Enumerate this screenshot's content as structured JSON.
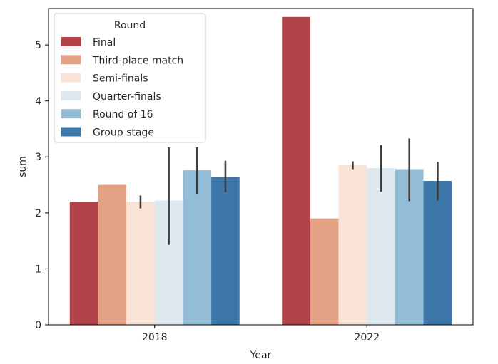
{
  "chart_data": {
    "type": "bar",
    "title": "",
    "xlabel": "Year",
    "ylabel": "sum",
    "categories": [
      "2018",
      "2022"
    ],
    "ylim": [
      0,
      5.65
    ],
    "yticks": [
      0,
      1,
      2,
      3,
      4,
      5
    ],
    "grid": false,
    "legend": {
      "title": "Round",
      "placement": "top-left"
    },
    "series": [
      {
        "name": "Final",
        "color": "#b2424a",
        "values": [
          2.2,
          5.5
        ],
        "err_low": [
          null,
          null
        ],
        "err_high": [
          null,
          null
        ]
      },
      {
        "name": "Third-place match",
        "color": "#e4a285",
        "values": [
          2.5,
          1.9
        ],
        "err_low": [
          null,
          null
        ],
        "err_high": [
          null,
          null
        ]
      },
      {
        "name": "Semi-finals",
        "color": "#f9e2d6",
        "values": [
          2.2,
          2.85
        ],
        "err_low": [
          2.08,
          2.78
        ],
        "err_high": [
          2.31,
          2.92
        ]
      },
      {
        "name": "Quarter-finals",
        "color": "#dde8ef",
        "values": [
          2.22,
          2.8
        ],
        "err_low": [
          1.43,
          2.38
        ],
        "err_high": [
          3.17,
          3.21
        ]
      },
      {
        "name": "Round of 16",
        "color": "#93bdd6",
        "values": [
          2.76,
          2.78
        ],
        "err_low": [
          2.34,
          2.21
        ],
        "err_high": [
          3.17,
          3.33
        ]
      },
      {
        "name": "Group stage",
        "color": "#3d77a9",
        "values": [
          2.64,
          2.57
        ],
        "err_low": [
          2.37,
          2.22
        ],
        "err_high": [
          2.93,
          2.91
        ]
      }
    ]
  }
}
